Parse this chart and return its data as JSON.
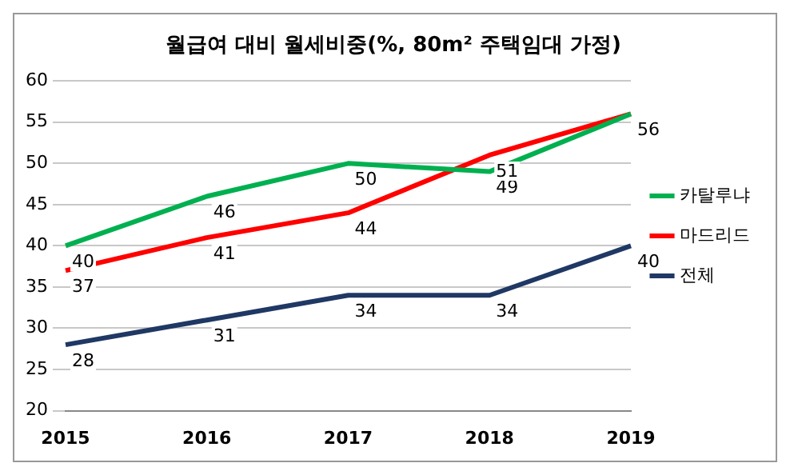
{
  "chart_data": {
    "type": "line",
    "title": "월급여 대비 월세비중(%, 80m² 주택임대 가정)",
    "categories": [
      "2015",
      "2016",
      "2017",
      "2018",
      "2019"
    ],
    "series": [
      {
        "name": "카탈루냐",
        "color": "#00b050",
        "values": [
          40,
          46,
          50,
          49,
          56
        ],
        "value_labels": [
          "40",
          "46",
          "50",
          "49",
          null
        ]
      },
      {
        "name": "마드리드",
        "color": "#ff0000",
        "values": [
          37,
          41,
          44,
          51,
          56
        ],
        "value_labels": [
          "37",
          "41",
          "44",
          "51",
          "56"
        ]
      },
      {
        "name": "전체",
        "color": "#1f3864",
        "values": [
          28,
          31,
          34,
          34,
          40
        ],
        "value_labels": [
          "28",
          "31",
          "34",
          "34",
          "40"
        ]
      }
    ],
    "ylim": [
      20,
      60
    ],
    "yticks": [
      20,
      25,
      30,
      35,
      40,
      45,
      50,
      55,
      60
    ],
    "grid": "y",
    "legend": "right",
    "marker": "none",
    "line_style": "solid"
  }
}
